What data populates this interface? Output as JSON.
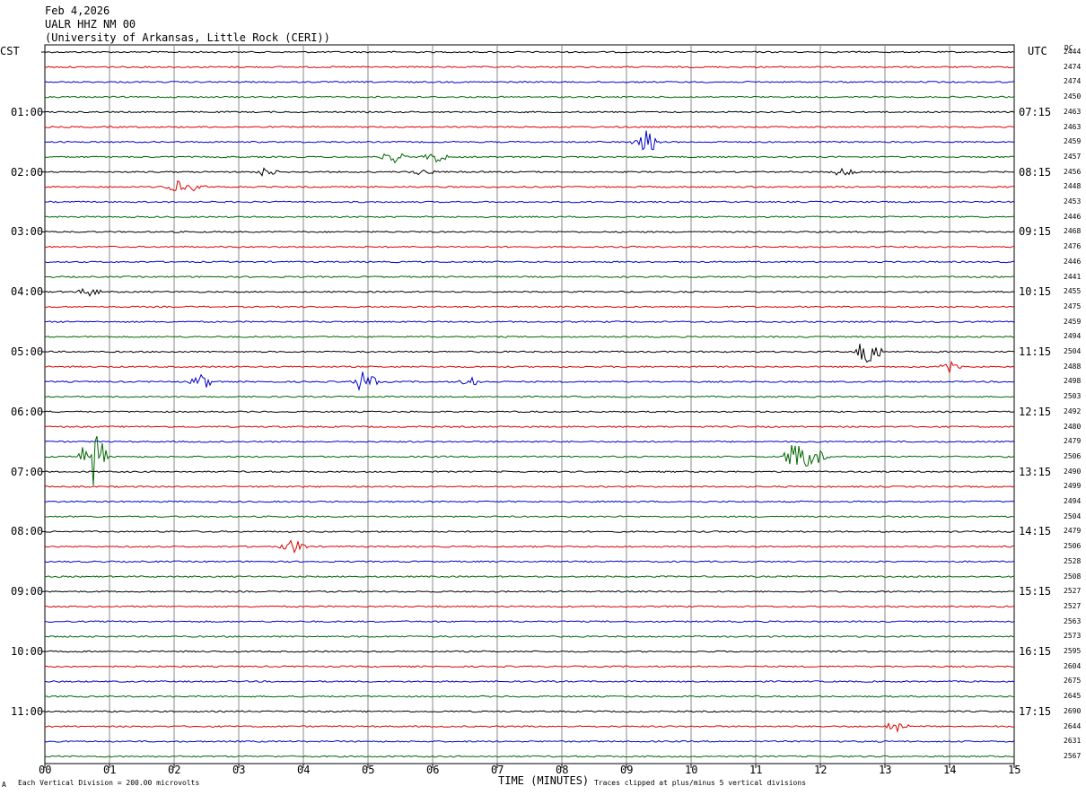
{
  "header": {
    "date": "Feb 4,2026",
    "station": "UALR HHZ NM 00",
    "institution": "(University of Arkansas, Little Rock (CERI))"
  },
  "left_axis_label": "CST",
  "right_axis_label": "UTC",
  "dc_label": "DC",
  "x_axis": {
    "label": "TIME (MINUTES)",
    "ticks": [
      "00",
      "01",
      "02",
      "03",
      "04",
      "05",
      "06",
      "07",
      "08",
      "09",
      "10",
      "11",
      "12",
      "13",
      "14",
      "15"
    ]
  },
  "footer": {
    "scale_note": "Each Vertical Division =  200.00 microvolts",
    "clip_note": "Traces clipped at plus/minus 5 vertical divisions",
    "corner_mark": "A"
  },
  "colors": {
    "line1": "#000000",
    "line2": "#dd0000",
    "line3": "#0000cc",
    "line4": "#006600",
    "grid": "#888888"
  },
  "chart_data": {
    "type": "helicorder",
    "minutes_per_line": 15,
    "line_count": 48,
    "cst_hour_labels": [
      "01:00",
      "02:00",
      "03:00",
      "04:00",
      "05:00",
      "06:00",
      "07:00",
      "08:00",
      "09:00",
      "10:00",
      "11:00"
    ],
    "utc_hour_labels": [
      "07:15",
      "08:15",
      "09:15",
      "10:15",
      "11:15",
      "12:15",
      "13:15",
      "14:15",
      "15:15",
      "16:15",
      "17:15"
    ],
    "dc_offsets": [
      2444,
      2474,
      2474,
      2450,
      2463,
      2463,
      2459,
      2457,
      2456,
      2448,
      2453,
      2446,
      2468,
      2476,
      2446,
      2441,
      2455,
      2475,
      2459,
      2494,
      2504,
      2488,
      2498,
      2503,
      2492,
      2480,
      2479,
      2506,
      2490,
      2499,
      2494,
      2504,
      2479,
      2506,
      2528,
      2508,
      2527,
      2527,
      2563,
      2573,
      2595,
      2604,
      2675,
      2645,
      2690,
      2644,
      2631,
      2567
    ],
    "events": [
      {
        "line": 6,
        "minute": 9.3,
        "amp": 0.9
      },
      {
        "line": 7,
        "minute": 5.4,
        "amp": 0.4
      },
      {
        "line": 7,
        "minute": 6.05,
        "amp": 0.4
      },
      {
        "line": 8,
        "minute": 3.4,
        "amp": 0.3
      },
      {
        "line": 8,
        "minute": 5.85,
        "amp": 0.3
      },
      {
        "line": 8,
        "minute": 12.35,
        "amp": 0.3
      },
      {
        "line": 9,
        "minute": 2.05,
        "amp": 0.4
      },
      {
        "line": 9,
        "minute": 2.3,
        "amp": 0.3
      },
      {
        "line": 16,
        "minute": 0.7,
        "amp": 0.3
      },
      {
        "line": 20,
        "minute": 12.75,
        "amp": 1.2
      },
      {
        "line": 21,
        "minute": 13.95,
        "amp": 0.6
      },
      {
        "line": 22,
        "minute": 2.45,
        "amp": 0.5
      },
      {
        "line": 22,
        "minute": 4.95,
        "amp": 0.8
      },
      {
        "line": 22,
        "minute": 6.6,
        "amp": 0.3
      },
      {
        "line": 27,
        "minute": 0.75,
        "amp": 2.0
      },
      {
        "line": 27,
        "minute": 11.65,
        "amp": 1.4
      },
      {
        "line": 27,
        "minute": 11.95,
        "amp": 0.8
      },
      {
        "line": 33,
        "minute": 3.85,
        "amp": 0.5
      },
      {
        "line": 45,
        "minute": 13.2,
        "amp": 0.4
      }
    ]
  }
}
